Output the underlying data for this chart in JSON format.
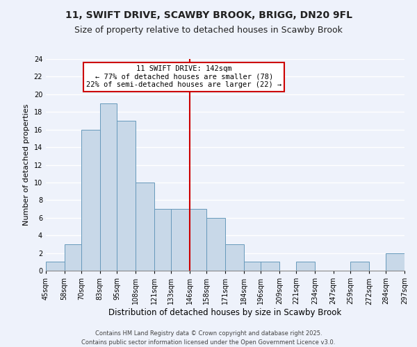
{
  "title": "11, SWIFT DRIVE, SCAWBY BROOK, BRIGG, DN20 9FL",
  "subtitle": "Size of property relative to detached houses in Scawby Brook",
  "xlabel": "Distribution of detached houses by size in Scawby Brook",
  "ylabel": "Number of detached properties",
  "bin_edges": [
    45,
    58,
    70,
    83,
    95,
    108,
    121,
    133,
    146,
    158,
    171,
    184,
    196,
    209,
    221,
    234,
    247,
    259,
    272,
    284,
    297
  ],
  "counts": [
    1,
    3,
    16,
    19,
    17,
    10,
    7,
    7,
    7,
    6,
    3,
    1,
    1,
    0,
    1,
    0,
    0,
    1,
    0,
    2
  ],
  "bar_color": "#c8d8e8",
  "bar_edge_color": "#6699bb",
  "background_color": "#eef2fb",
  "grid_color": "#ffffff",
  "vline_x": 146,
  "vline_color": "#cc0000",
  "annotation_title": "11 SWIFT DRIVE: 142sqm",
  "annotation_line1": "← 77% of detached houses are smaller (78)",
  "annotation_line2": "22% of semi-detached houses are larger (22) →",
  "annotation_box_facecolor": "#ffffff",
  "annotation_box_edgecolor": "#cc0000",
  "ylim": [
    0,
    24
  ],
  "yticks": [
    0,
    2,
    4,
    6,
    8,
    10,
    12,
    14,
    16,
    18,
    20,
    22,
    24
  ],
  "footer1": "Contains HM Land Registry data © Crown copyright and database right 2025.",
  "footer2": "Contains public sector information licensed under the Open Government Licence v3.0.",
  "title_fontsize": 10,
  "subtitle_fontsize": 9,
  "xlabel_fontsize": 8.5,
  "ylabel_fontsize": 8,
  "tick_fontsize": 7,
  "annotation_fontsize": 7.5,
  "footer_fontsize": 6
}
